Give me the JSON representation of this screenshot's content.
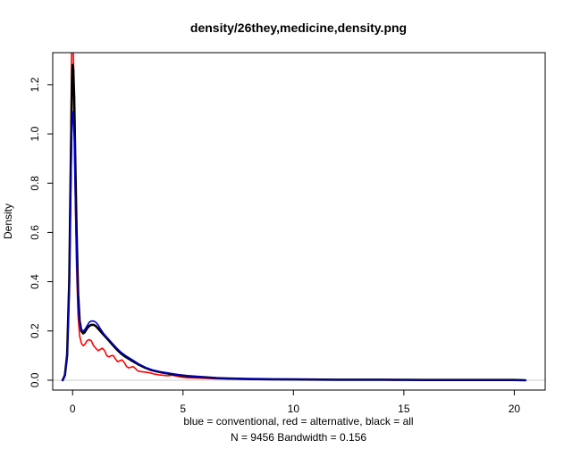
{
  "chart_data": {
    "type": "line",
    "title": "density/26they,medicine,density.png",
    "xlabel": "blue = conventional, red = alternative, black = all",
    "sub_label": "N = 9456   Bandwidth = 0.156",
    "ylabel": "Density",
    "xlim": [
      -0.9,
      21.4
    ],
    "ylim": [
      -0.04,
      1.33
    ],
    "x_ticks": [
      0,
      5,
      10,
      15,
      20
    ],
    "y_ticks": [
      0.0,
      0.2,
      0.4,
      0.6,
      0.8,
      1.0,
      1.2
    ],
    "x_tick_labels": [
      "0",
      "5",
      "10",
      "15",
      "20"
    ],
    "y_tick_labels": [
      "0.0",
      "0.2",
      "0.4",
      "0.6",
      "0.8",
      "1.0",
      "1.2"
    ],
    "grid": false,
    "series": [
      {
        "key": "red",
        "color": "#ff0000",
        "width": 1.6,
        "x": [
          -0.45,
          -0.35,
          -0.25,
          -0.15,
          -0.08,
          -0.04,
          -0.01,
          0.0,
          0.02,
          0.05,
          0.08,
          0.12,
          0.18,
          0.25,
          0.32,
          0.4,
          0.48,
          0.55,
          0.65,
          0.75,
          0.85,
          0.95,
          1.05,
          1.15,
          1.25,
          1.35,
          1.45,
          1.55,
          1.65,
          1.75,
          1.85,
          1.95,
          2.05,
          2.15,
          2.25,
          2.35,
          2.45,
          2.55,
          2.65,
          2.75,
          2.85,
          2.95,
          3.1,
          3.3,
          3.5,
          3.7,
          3.9,
          4.1,
          4.3,
          4.5,
          4.7,
          4.9,
          5.2,
          5.6,
          6.0,
          6.5,
          7.0,
          8.0,
          9.0,
          10.0,
          11.0,
          12.0,
          13.0,
          14.0,
          14.8
        ],
        "y": [
          0.0,
          0.02,
          0.12,
          0.45,
          1.0,
          1.38,
          1.38,
          1.4,
          1.38,
          1.25,
          1.05,
          0.75,
          0.45,
          0.26,
          0.18,
          0.15,
          0.14,
          0.145,
          0.16,
          0.165,
          0.16,
          0.14,
          0.13,
          0.12,
          0.125,
          0.13,
          0.12,
          0.1,
          0.095,
          0.1,
          0.1,
          0.085,
          0.075,
          0.08,
          0.082,
          0.07,
          0.055,
          0.05,
          0.053,
          0.055,
          0.047,
          0.038,
          0.035,
          0.033,
          0.03,
          0.025,
          0.022,
          0.02,
          0.018,
          0.02,
          0.017,
          0.013,
          0.01,
          0.009,
          0.008,
          0.006,
          0.005,
          0.004,
          0.003,
          0.003,
          0.002,
          0.002,
          0.002,
          0.001,
          0.0
        ]
      },
      {
        "key": "black",
        "color": "#000000",
        "width": 2.6,
        "x": [
          -0.45,
          -0.35,
          -0.25,
          -0.15,
          -0.08,
          -0.03,
          0.0,
          0.03,
          0.07,
          0.12,
          0.18,
          0.25,
          0.32,
          0.4,
          0.48,
          0.55,
          0.65,
          0.75,
          0.85,
          0.95,
          1.05,
          1.15,
          1.25,
          1.4,
          1.6,
          1.8,
          2.0,
          2.2,
          2.4,
          2.7,
          3.0,
          3.3,
          3.6,
          4.0,
          4.4,
          4.8,
          5.2,
          5.6,
          6.0,
          6.5,
          7.0,
          8.0,
          9.0,
          10.0,
          12.0,
          14.0,
          16.0,
          18.0,
          20.0,
          20.5
        ],
        "y": [
          0.0,
          0.02,
          0.1,
          0.4,
          0.9,
          1.2,
          1.28,
          1.26,
          1.15,
          0.9,
          0.6,
          0.35,
          0.24,
          0.2,
          0.19,
          0.195,
          0.21,
          0.22,
          0.225,
          0.225,
          0.22,
          0.21,
          0.2,
          0.185,
          0.165,
          0.145,
          0.125,
          0.108,
          0.095,
          0.078,
          0.063,
          0.05,
          0.04,
          0.032,
          0.026,
          0.021,
          0.017,
          0.014,
          0.012,
          0.009,
          0.007,
          0.005,
          0.004,
          0.003,
          0.002,
          0.002,
          0.001,
          0.001,
          0.001,
          0.0
        ]
      },
      {
        "key": "blue",
        "color": "#0000cd",
        "width": 1.6,
        "x": [
          -0.45,
          -0.35,
          -0.25,
          -0.15,
          -0.08,
          -0.03,
          0.0,
          0.03,
          0.07,
          0.12,
          0.18,
          0.25,
          0.32,
          0.4,
          0.48,
          0.55,
          0.65,
          0.75,
          0.85,
          0.95,
          1.05,
          1.15,
          1.25,
          1.4,
          1.6,
          1.8,
          2.0,
          2.2,
          2.4,
          2.7,
          3.0,
          3.3,
          3.6,
          4.0,
          4.4,
          4.8,
          5.2,
          5.6,
          6.0,
          6.5,
          7.0,
          8.0,
          9.0,
          10.0,
          12.0,
          14.0,
          16.0,
          18.0,
          20.0,
          20.5
        ],
        "y": [
          0.0,
          0.02,
          0.09,
          0.35,
          0.78,
          1.02,
          1.09,
          1.08,
          0.98,
          0.75,
          0.5,
          0.3,
          0.23,
          0.205,
          0.2,
          0.205,
          0.22,
          0.235,
          0.24,
          0.24,
          0.235,
          0.225,
          0.21,
          0.19,
          0.17,
          0.15,
          0.13,
          0.113,
          0.1,
          0.083,
          0.066,
          0.052,
          0.042,
          0.034,
          0.028,
          0.022,
          0.018,
          0.015,
          0.012,
          0.01,
          0.008,
          0.006,
          0.004,
          0.003,
          0.002,
          0.002,
          0.001,
          0.001,
          0.001,
          0.0
        ]
      }
    ]
  }
}
